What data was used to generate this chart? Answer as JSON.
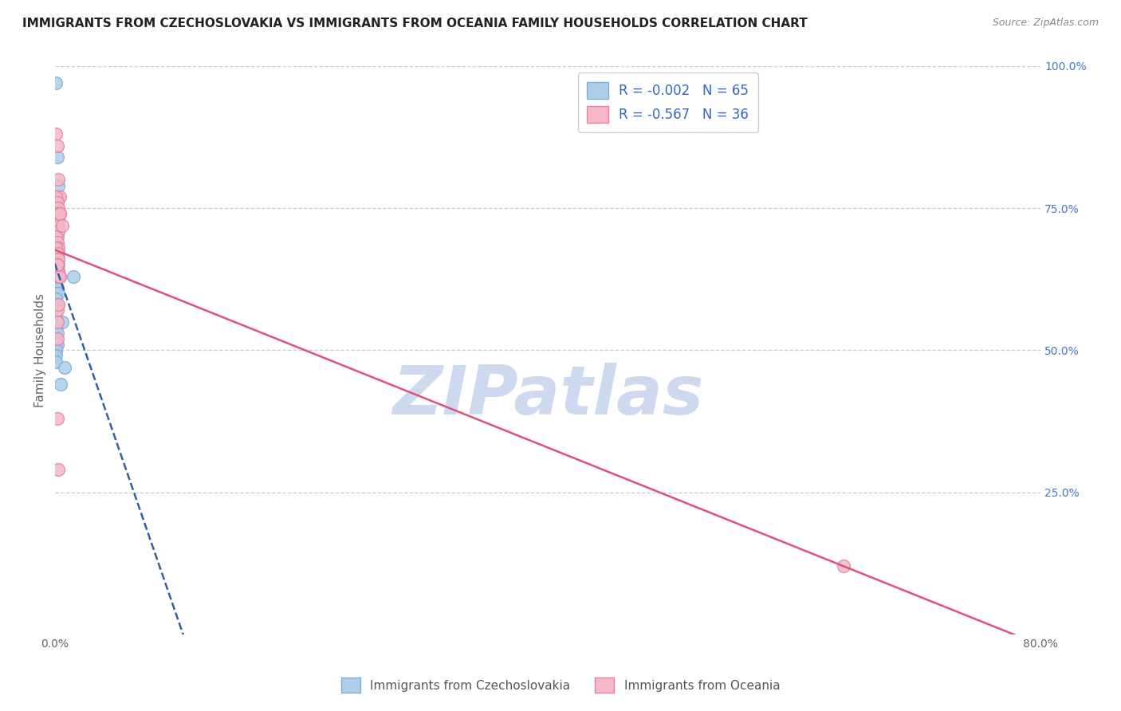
{
  "title": "IMMIGRANTS FROM CZECHOSLOVAKIA VS IMMIGRANTS FROM OCEANIA FAMILY HOUSEHOLDS CORRELATION CHART",
  "source": "Source: ZipAtlas.com",
  "ylabel": "Family Households",
  "series": [
    {
      "label": "Immigrants from Czechoslovakia",
      "color_fill": "#aecde8",
      "color_edge": "#7bafd4",
      "line_color": "#3060a0",
      "line_style": "--",
      "R": -0.002,
      "N": 65,
      "points_x": [
        0.001,
        0.002,
        0.003,
        0.001,
        0.002,
        0.001,
        0.001,
        0.002,
        0.001,
        0.002,
        0.001,
        0.001,
        0.002,
        0.003,
        0.001,
        0.001,
        0.002,
        0.001,
        0.001,
        0.001,
        0.002,
        0.001,
        0.002,
        0.001,
        0.002,
        0.003,
        0.003,
        0.002,
        0.001,
        0.001,
        0.002,
        0.001,
        0.003,
        0.002,
        0.001,
        0.004,
        0.002,
        0.001,
        0.001,
        0.002,
        0.001,
        0.001,
        0.001,
        0.002,
        0.001,
        0.003,
        0.001,
        0.001,
        0.002,
        0.001,
        0.001,
        0.001,
        0.006,
        0.001,
        0.002,
        0.001,
        0.001,
        0.001,
        0.002,
        0.001,
        0.001,
        0.001,
        0.008,
        0.005,
        0.015
      ],
      "points_y": [
        0.97,
        0.84,
        0.79,
        0.77,
        0.77,
        0.76,
        0.75,
        0.74,
        0.73,
        0.73,
        0.72,
        0.72,
        0.72,
        0.72,
        0.71,
        0.7,
        0.7,
        0.7,
        0.69,
        0.68,
        0.68,
        0.67,
        0.67,
        0.66,
        0.66,
        0.67,
        0.66,
        0.65,
        0.65,
        0.64,
        0.65,
        0.64,
        0.65,
        0.63,
        0.63,
        0.63,
        0.63,
        0.63,
        0.63,
        0.63,
        0.62,
        0.62,
        0.61,
        0.61,
        0.6,
        0.6,
        0.59,
        0.58,
        0.58,
        0.57,
        0.56,
        0.55,
        0.55,
        0.54,
        0.53,
        0.52,
        0.51,
        0.5,
        0.51,
        0.5,
        0.49,
        0.48,
        0.47,
        0.44,
        0.63
      ]
    },
    {
      "label": "Immigrants from Oceania",
      "color_fill": "#f4b8c8",
      "color_edge": "#e87fa0",
      "line_color": "#e0507a",
      "line_style": "-",
      "R": -0.567,
      "N": 36,
      "points_x": [
        0.001,
        0.002,
        0.003,
        0.004,
        0.001,
        0.002,
        0.003,
        0.001,
        0.002,
        0.003,
        0.001,
        0.002,
        0.003,
        0.004,
        0.001,
        0.002,
        0.003,
        0.004,
        0.001,
        0.002,
        0.003,
        0.001,
        0.002,
        0.003,
        0.002,
        0.003,
        0.002,
        0.004,
        0.003,
        0.002,
        0.006,
        0.002,
        0.002,
        0.003,
        0.002,
        0.64
      ],
      "points_y": [
        0.88,
        0.86,
        0.8,
        0.77,
        0.77,
        0.76,
        0.75,
        0.74,
        0.73,
        0.73,
        0.73,
        0.72,
        0.71,
        0.74,
        0.7,
        0.69,
        0.68,
        0.74,
        0.68,
        0.67,
        0.66,
        0.65,
        0.65,
        0.64,
        0.64,
        0.63,
        0.57,
        0.63,
        0.58,
        0.65,
        0.72,
        0.55,
        0.38,
        0.29,
        0.52,
        0.12
      ]
    }
  ],
  "xmin": 0.0,
  "xmax": 0.8,
  "ymin": 0.0,
  "ymax": 1.0,
  "yticks": [
    0.25,
    0.5,
    0.75,
    1.0
  ],
  "ytick_labels": [
    "25.0%",
    "50.0%",
    "75.0%",
    "100.0%"
  ],
  "xticks": [
    0.0,
    0.1,
    0.2,
    0.3,
    0.4,
    0.5,
    0.6,
    0.7,
    0.8
  ],
  "xtick_labels_show": [
    "0.0%",
    "",
    "",
    "",
    "",
    "",
    "",
    "",
    "80.0%"
  ],
  "background_color": "#ffffff",
  "grid_color": "#cccccc",
  "title_fontsize": 11,
  "axis_label_fontsize": 11,
  "tick_fontsize": 10,
  "watermark_text": "ZIPatlas",
  "watermark_color": "#ccd9ef"
}
